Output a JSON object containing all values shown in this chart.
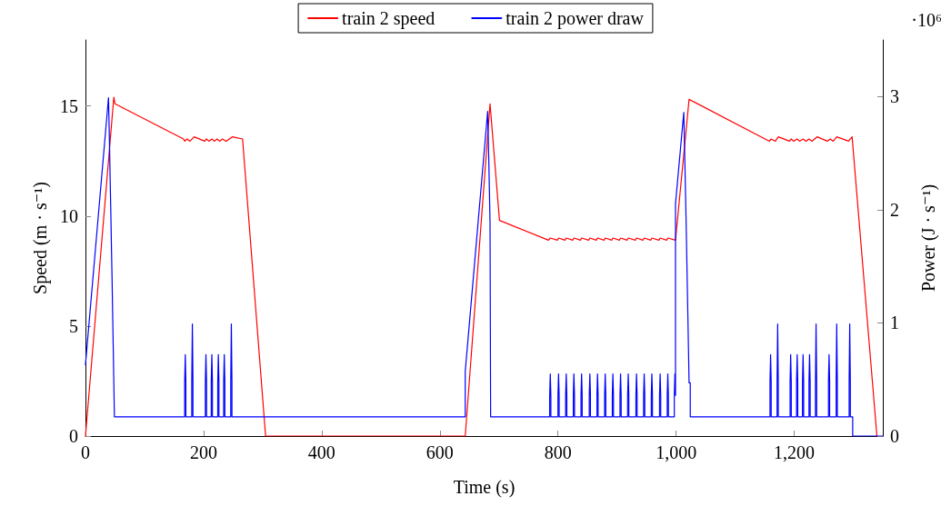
{
  "chart_data": {
    "type": "line",
    "xlabel": "Time (s)",
    "ylabel": "Speed (m · s⁻¹)",
    "y2label": "Power (J · s⁻¹)",
    "annotations": [
      "·10⁶"
    ],
    "xlim": [
      0,
      1350
    ],
    "xticks": [
      0,
      200,
      400,
      600,
      800,
      {
        "value": 1000,
        "label": "1,000"
      },
      {
        "value": 1200,
        "label": "1,200"
      }
    ],
    "ylim": [
      0,
      18
    ],
    "yticks": [
      0,
      5,
      10,
      15
    ],
    "y2lim": [
      0,
      3.5
    ],
    "y2ticks": [
      0,
      1,
      2,
      3
    ],
    "legend": "top",
    "marker": "none",
    "line_style": "solid",
    "series": [
      {
        "name": "train 2 speed",
        "color": "#ff0000",
        "x": [
          0,
          48,
          50,
          166,
          168,
          172,
          177,
          184,
          202,
          205,
          209,
          214,
          218,
          223,
          227,
          232,
          238,
          249,
          266,
          305,
          643,
          685,
          701,
          784,
          787,
          799,
          801,
          812,
          814,
          825,
          827,
          838,
          840,
          852,
          854,
          865,
          867,
          878,
          880,
          891,
          893,
          904,
          906,
          917,
          919,
          931,
          933,
          944,
          946,
          957,
          959,
          971,
          973,
          984,
          986,
          999,
          1022,
          1158,
          1161,
          1168,
          1173,
          1192,
          1195,
          1199,
          1205,
          1209,
          1215,
          1220,
          1225,
          1230,
          1239,
          1256,
          1261,
          1266,
          1272,
          1292,
          1298,
          1340
        ],
        "values": [
          0,
          15.4,
          15.1,
          13.5,
          13.4,
          13.5,
          13.4,
          13.6,
          13.4,
          13.5,
          13.4,
          13.5,
          13.4,
          13.5,
          13.4,
          13.5,
          13.4,
          13.6,
          13.5,
          0,
          0,
          15.1,
          9.8,
          8.9,
          9,
          8.9,
          9,
          8.9,
          9,
          8.9,
          9,
          8.9,
          9,
          8.9,
          9,
          8.9,
          9,
          8.9,
          9,
          8.9,
          9,
          8.9,
          9,
          8.9,
          9,
          8.9,
          9,
          8.9,
          9,
          8.9,
          9,
          8.9,
          9,
          8.9,
          9,
          8.9,
          15.3,
          13.4,
          13.5,
          13.4,
          13.6,
          13.4,
          13.5,
          13.4,
          13.5,
          13.4,
          13.5,
          13.4,
          13.5,
          13.4,
          13.6,
          13.4,
          13.5,
          13.4,
          13.6,
          13.4,
          13.6,
          0
        ]
      },
      {
        "name": "train 2 power draw",
        "color": "#0000ff",
        "axis": "y2",
        "x": [
          0,
          39,
          40,
          40,
          41,
          41,
          42,
          42,
          43,
          43,
          44,
          44,
          45,
          45,
          46,
          46,
          47,
          47,
          48,
          48,
          49,
          49,
          168,
          168,
          169,
          170,
          170,
          180,
          180,
          181,
          182,
          182,
          203,
          203,
          204,
          205,
          205,
          213,
          213,
          214,
          215,
          215,
          224,
          224,
          225,
          226,
          226,
          234,
          234,
          235,
          236,
          236,
          246,
          246,
          247,
          248,
          248,
          643,
          643,
          681,
          682,
          682,
          683,
          683,
          684,
          684,
          685,
          685,
          686,
          686,
          786,
          786,
          787,
          788,
          788,
          800,
          800,
          801,
          802,
          802,
          813,
          813,
          814,
          815,
          815,
          826,
          826,
          827,
          828,
          828,
          839,
          839,
          840,
          841,
          841,
          853,
          853,
          854,
          855,
          855,
          866,
          866,
          867,
          868,
          868,
          879,
          879,
          880,
          881,
          881,
          892,
          892,
          893,
          894,
          894,
          905,
          905,
          906,
          907,
          907,
          918,
          918,
          919,
          920,
          920,
          932,
          932,
          933,
          934,
          934,
          945,
          945,
          946,
          947,
          947,
          958,
          958,
          959,
          960,
          960,
          972,
          972,
          973,
          974,
          974,
          985,
          985,
          986,
          987,
          987,
          997,
          997,
          998,
          999,
          999,
          1013,
          1014,
          1014,
          1015,
          1015,
          1016,
          1016,
          1017,
          1017,
          1018,
          1018,
          1019,
          1019,
          1020,
          1020,
          1021,
          1021,
          1022,
          1022,
          1024,
          1024,
          1159,
          1159,
          1160,
          1161,
          1161,
          1171,
          1171,
          1172,
          1173,
          1173,
          1193,
          1193,
          1194,
          1195,
          1195,
          1204,
          1204,
          1205,
          1206,
          1206,
          1214,
          1214,
          1215,
          1216,
          1216,
          1225,
          1225,
          1226,
          1227,
          1227,
          1236,
          1236,
          1237,
          1238,
          1238,
          1258,
          1258,
          1259,
          1260,
          1260,
          1271,
          1271,
          1272,
          1273,
          1273,
          1293,
          1293,
          1294,
          1295,
          1295,
          1299,
          1299,
          1350
        ],
        "values": [
          0.63,
          2.99,
          2.99,
          2.75,
          2.75,
          2.5,
          2.5,
          2.22,
          2.22,
          1.96,
          1.96,
          1.67,
          1.67,
          1.4,
          1.4,
          1.09,
          1.09,
          0.79,
          0.79,
          0.48,
          0.48,
          0.17,
          0.17,
          0.48,
          0.72,
          0.48,
          0.17,
          0.17,
          0.48,
          0.99,
          0.48,
          0.17,
          0.17,
          0.48,
          0.72,
          0.48,
          0.17,
          0.17,
          0.48,
          0.72,
          0.48,
          0.17,
          0.17,
          0.48,
          0.72,
          0.48,
          0.17,
          0.17,
          0.48,
          0.72,
          0.48,
          0.17,
          0.17,
          0.48,
          0.99,
          0.48,
          0.17,
          0.17,
          0.57,
          2.87,
          2.87,
          2.64,
          2.64,
          2.41,
          2.41,
          2.15,
          2.15,
          1.89,
          1.89,
          0.17,
          0.17,
          0.36,
          0.55,
          0.36,
          0.17,
          0.17,
          0.36,
          0.55,
          0.36,
          0.17,
          0.17,
          0.36,
          0.55,
          0.36,
          0.17,
          0.17,
          0.36,
          0.55,
          0.36,
          0.17,
          0.17,
          0.36,
          0.55,
          0.36,
          0.17,
          0.17,
          0.36,
          0.55,
          0.36,
          0.17,
          0.17,
          0.36,
          0.55,
          0.36,
          0.17,
          0.17,
          0.36,
          0.55,
          0.36,
          0.17,
          0.17,
          0.36,
          0.55,
          0.36,
          0.17,
          0.17,
          0.36,
          0.55,
          0.36,
          0.17,
          0.17,
          0.36,
          0.55,
          0.36,
          0.17,
          0.17,
          0.36,
          0.55,
          0.36,
          0.17,
          0.17,
          0.36,
          0.55,
          0.36,
          0.17,
          0.17,
          0.36,
          0.55,
          0.36,
          0.17,
          0.17,
          0.36,
          0.55,
          0.36,
          0.17,
          0.17,
          0.36,
          0.55,
          0.36,
          0.17,
          0.17,
          0.36,
          0.55,
          0.36,
          2.05,
          2.86,
          2.86,
          2.63,
          2.63,
          2.39,
          2.39,
          2.14,
          2.14,
          1.89,
          1.89,
          1.61,
          1.61,
          1.33,
          1.33,
          1.05,
          1.05,
          0.76,
          0.76,
          0.47,
          0.47,
          0.17,
          0.17,
          0.48,
          0.72,
          0.48,
          0.17,
          0.17,
          0.48,
          0.99,
          0.48,
          0.17,
          0.17,
          0.48,
          0.72,
          0.48,
          0.17,
          0.17,
          0.48,
          0.72,
          0.48,
          0.17,
          0.17,
          0.48,
          0.72,
          0.48,
          0.17,
          0.17,
          0.48,
          0.72,
          0.48,
          0.17,
          0.17,
          0.48,
          0.99,
          0.48,
          0.17,
          0.17,
          0.48,
          0.72,
          0.48,
          0.17,
          0.17,
          0.48,
          0.99,
          0.48,
          0.17,
          0.17,
          0.48,
          0.99,
          0.48,
          0.17,
          0.17,
          0,
          0
        ]
      }
    ]
  }
}
